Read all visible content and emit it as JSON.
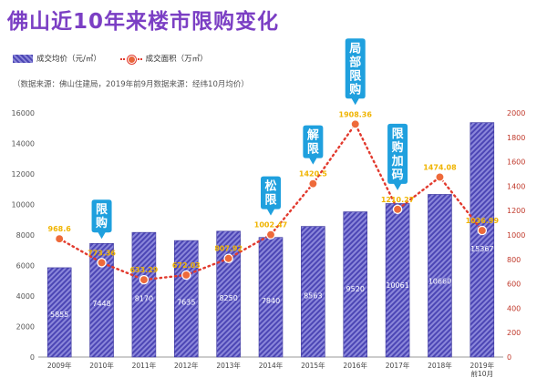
{
  "title": "佛山近10年来楼市限购变化",
  "legend": {
    "bar_label": "成交均价（元/㎡）",
    "line_label": "成交面积（万㎡）"
  },
  "note": "（数据来源：佛山住建局，2019年前9月数据来源：经纬10月均价）",
  "colors": {
    "title": "#7b3fc4",
    "bar": "#4c46b5",
    "line": "#e23a2e",
    "point_label": "#f0b400",
    "callout": "#1fa0de"
  },
  "chart_data": {
    "type": "bar",
    "categories": [
      "2009年",
      "2010年",
      "2011年",
      "2012年",
      "2013年",
      "2014年",
      "2015年",
      "2016年",
      "2017年",
      "2018年",
      "2019年前10月"
    ],
    "series": [
      {
        "name": "成交均价（元/㎡）",
        "type": "bar",
        "axis": "left",
        "values": [
          5855,
          7448,
          8170,
          7635,
          8250,
          7840,
          8563,
          9520,
          10061,
          10660,
          15367
        ]
      },
      {
        "name": "成交面积（万㎡）",
        "type": "line",
        "axis": "right",
        "values": [
          968.6,
          773.36,
          633.29,
          672.03,
          807.92,
          1002.47,
          1420.5,
          1908.36,
          1210.27,
          1474.08,
          1036.99
        ]
      }
    ],
    "point_labels": [
      "968.6",
      "773.36",
      "633.29",
      "672.03",
      "807.92",
      "1002.47",
      "1420.5",
      "1908.36",
      "1210.27",
      "1474.08",
      "1036.99"
    ],
    "y_left_ticks": [
      "0",
      "2000",
      "4000",
      "6000",
      "8000",
      "10000",
      "12000",
      "14000",
      "16000"
    ],
    "y_left_lim": [
      0,
      16000
    ],
    "y_right_ticks": [
      "0",
      "200",
      "400",
      "600",
      "800",
      "1000",
      "1200",
      "1400",
      "1600",
      "1800",
      "2000"
    ],
    "y_right_lim": [
      0,
      2000
    ],
    "x_tick_labels": [
      [
        "2009年"
      ],
      [
        "2010年"
      ],
      [
        "2011年"
      ],
      [
        "2012年"
      ],
      [
        "2013年"
      ],
      [
        "2014年"
      ],
      [
        "2015年"
      ],
      [
        "2016年"
      ],
      [
        "2017年"
      ],
      [
        "2018年"
      ],
      [
        "2019年",
        "前10月"
      ]
    ],
    "annotations": [
      {
        "index": 1,
        "lines": [
          "限",
          "购"
        ]
      },
      {
        "index": 5,
        "lines": [
          "松",
          "限"
        ]
      },
      {
        "index": 6,
        "lines": [
          "解",
          "限"
        ]
      },
      {
        "index": 7,
        "lines": [
          "局",
          "部",
          "限",
          "购"
        ]
      },
      {
        "index": 8,
        "lines": [
          "限",
          "购",
          "加",
          "码"
        ]
      }
    ],
    "grid": false,
    "legend_position": "top-left"
  }
}
